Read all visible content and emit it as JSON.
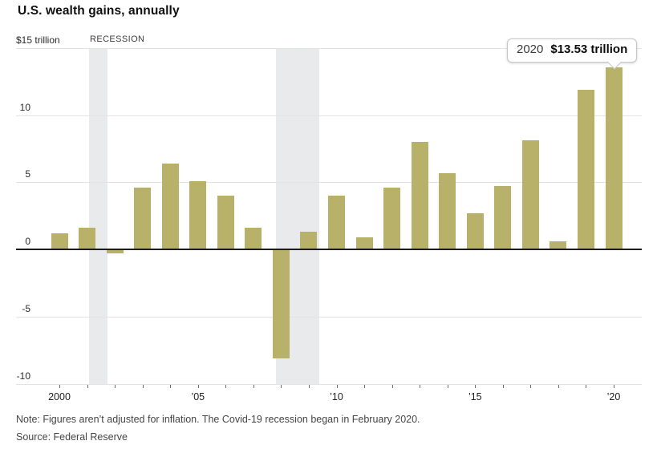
{
  "title": "U.S. wealth gains, annually",
  "note": "Note: Figures aren’t adjusted for inflation. The Covid-19 recession began in February 2020.",
  "source": "Source: Federal Reserve",
  "chart_data": {
    "type": "bar",
    "title": "U.S. wealth gains, annually",
    "xlabel": "",
    "ylabel": "$ trillion",
    "unit_label": "$15 trillion",
    "recession_label": "RECESSION",
    "bar_color": "#b7b16a",
    "recession_band_color": "#e9eaeb",
    "ylim": [
      -10,
      15
    ],
    "grid": true,
    "categories": [
      2000,
      2001,
      2002,
      2003,
      2004,
      2005,
      2006,
      2007,
      2008,
      2009,
      2010,
      2011,
      2012,
      2013,
      2014,
      2015,
      2016,
      2017,
      2018,
      2019,
      2020
    ],
    "values": [
      1.2,
      1.6,
      -0.3,
      4.6,
      6.4,
      5.1,
      4.0,
      1.6,
      -8.1,
      1.3,
      4.0,
      0.9,
      4.6,
      8.0,
      5.7,
      2.7,
      4.7,
      8.1,
      0.6,
      11.9,
      13.53
    ],
    "ytick_values": [
      15,
      10,
      5,
      0,
      -5,
      -10
    ],
    "ytick_labels": [
      "$15 trillion",
      "10",
      "5",
      "0",
      "-5",
      "-10"
    ],
    "xtick_labels": [
      {
        "year": 2000,
        "label": "2000"
      },
      {
        "year": 2005,
        "label": "’05"
      },
      {
        "year": 2010,
        "label": "’10"
      },
      {
        "year": 2015,
        "label": "’15"
      },
      {
        "year": 2020,
        "label": "’20"
      }
    ],
    "recession_bands": [
      {
        "from": 2001.08,
        "to": 2001.74
      },
      {
        "from": 2007.82,
        "to": 2009.39
      }
    ],
    "annotation": {
      "year_label": "2020",
      "value_label": "$13.53 trillion"
    }
  }
}
